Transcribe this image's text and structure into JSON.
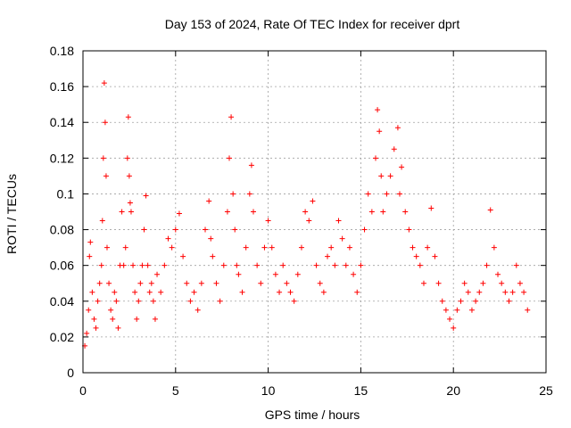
{
  "chart_data": {
    "type": "scatter",
    "title": "Day 153 of 2024, Rate Of TEC Index for receiver dprt",
    "xlabel": "GPS time / hours",
    "ylabel": "ROTI / TECUs",
    "xlim": [
      0,
      25
    ],
    "ylim": [
      0,
      0.18
    ],
    "xticks": [
      0,
      5,
      10,
      15,
      20,
      25
    ],
    "xtick_labels": [
      "0",
      "5",
      "10",
      "15",
      "20",
      "25"
    ],
    "yticks": [
      0,
      0.02,
      0.04,
      0.06,
      0.08,
      0.1,
      0.12,
      0.14,
      0.16,
      0.18
    ],
    "ytick_labels": [
      "0",
      "0.02",
      "0.04",
      "0.06",
      "0.08",
      "0.1",
      "0.12",
      "0.14",
      "0.16",
      "0.18"
    ],
    "grid": true,
    "legend": "none",
    "marker": "+",
    "color": "#ff0000",
    "series": [
      {
        "name": "ROTI",
        "x": [
          0.1,
          0.2,
          0.3,
          0.35,
          0.4,
          0.5,
          0.6,
          0.7,
          0.8,
          0.9,
          1.0,
          1.05,
          1.1,
          1.15,
          1.2,
          1.25,
          1.3,
          1.4,
          1.5,
          1.6,
          1.7,
          1.8,
          1.9,
          2.0,
          2.1,
          2.2,
          2.3,
          2.4,
          2.45,
          2.5,
          2.55,
          2.6,
          2.7,
          2.8,
          2.9,
          3.0,
          3.1,
          3.2,
          3.3,
          3.4,
          3.5,
          3.6,
          3.7,
          3.8,
          3.9,
          4.0,
          4.2,
          4.4,
          4.6,
          4.8,
          5.0,
          5.2,
          5.4,
          5.6,
          5.8,
          6.0,
          6.2,
          6.4,
          6.6,
          6.8,
          6.9,
          7.0,
          7.2,
          7.4,
          7.6,
          7.8,
          7.9,
          8.0,
          8.1,
          8.2,
          8.3,
          8.4,
          8.6,
          8.8,
          9.0,
          9.1,
          9.2,
          9.4,
          9.6,
          9.8,
          10.0,
          10.2,
          10.4,
          10.6,
          10.8,
          11.0,
          11.2,
          11.4,
          11.6,
          11.8,
          12.0,
          12.2,
          12.4,
          12.6,
          12.8,
          13.0,
          13.2,
          13.4,
          13.6,
          13.8,
          14.0,
          14.2,
          14.4,
          14.6,
          14.8,
          15.0,
          15.2,
          15.4,
          15.6,
          15.8,
          15.9,
          16.0,
          16.1,
          16.2,
          16.4,
          16.6,
          16.8,
          17.0,
          17.1,
          17.2,
          17.4,
          17.6,
          17.8,
          18.0,
          18.2,
          18.4,
          18.6,
          18.8,
          19.0,
          19.2,
          19.4,
          19.6,
          19.8,
          20.0,
          20.2,
          20.4,
          20.6,
          20.8,
          21.0,
          21.2,
          21.4,
          21.6,
          21.8,
          22.0,
          22.2,
          22.4,
          22.6,
          22.8,
          23.0,
          23.2,
          23.4,
          23.6,
          23.8,
          24.0
        ],
        "y": [
          0.015,
          0.022,
          0.035,
          0.065,
          0.073,
          0.045,
          0.03,
          0.025,
          0.04,
          0.05,
          0.06,
          0.085,
          0.12,
          0.162,
          0.14,
          0.11,
          0.07,
          0.05,
          0.035,
          0.03,
          0.045,
          0.04,
          0.025,
          0.06,
          0.09,
          0.06,
          0.07,
          0.12,
          0.143,
          0.11,
          0.095,
          0.09,
          0.06,
          0.045,
          0.03,
          0.04,
          0.05,
          0.06,
          0.08,
          0.099,
          0.06,
          0.045,
          0.05,
          0.04,
          0.03,
          0.055,
          0.045,
          0.06,
          0.075,
          0.07,
          0.08,
          0.089,
          0.065,
          0.05,
          0.04,
          0.045,
          0.035,
          0.05,
          0.08,
          0.096,
          0.075,
          0.065,
          0.05,
          0.04,
          0.06,
          0.09,
          0.12,
          0.143,
          0.1,
          0.08,
          0.06,
          0.055,
          0.045,
          0.07,
          0.1,
          0.116,
          0.09,
          0.06,
          0.05,
          0.07,
          0.085,
          0.07,
          0.055,
          0.045,
          0.06,
          0.05,
          0.045,
          0.04,
          0.055,
          0.07,
          0.09,
          0.085,
          0.096,
          0.06,
          0.05,
          0.045,
          0.065,
          0.07,
          0.06,
          0.085,
          0.075,
          0.06,
          0.07,
          0.055,
          0.045,
          0.06,
          0.08,
          0.1,
          0.09,
          0.12,
          0.147,
          0.135,
          0.11,
          0.09,
          0.1,
          0.11,
          0.125,
          0.137,
          0.1,
          0.115,
          0.09,
          0.08,
          0.07,
          0.065,
          0.06,
          0.05,
          0.07,
          0.092,
          0.065,
          0.05,
          0.04,
          0.035,
          0.03,
          0.025,
          0.035,
          0.04,
          0.05,
          0.045,
          0.035,
          0.04,
          0.045,
          0.05,
          0.06,
          0.091,
          0.07,
          0.055,
          0.05,
          0.045,
          0.04,
          0.045,
          0.06,
          0.05,
          0.045,
          0.035
        ]
      }
    ]
  }
}
